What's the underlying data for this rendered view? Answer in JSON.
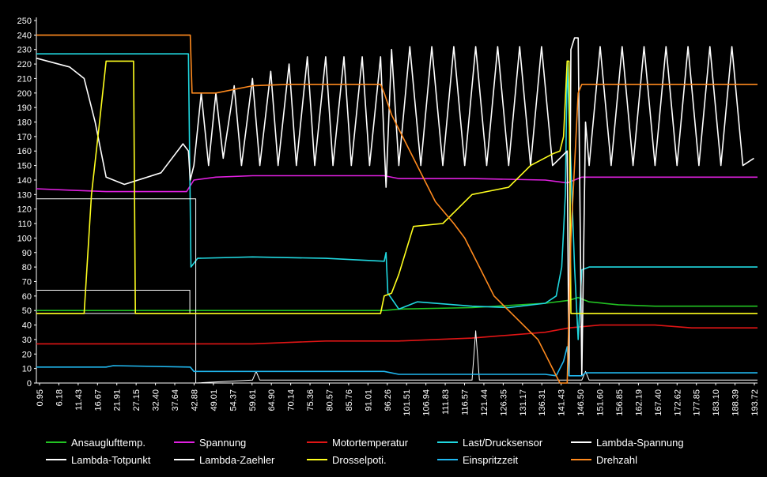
{
  "chart_data": {
    "type": "line",
    "title": "",
    "xlabel": "",
    "ylabel": "",
    "ylim": [
      0,
      250
    ],
    "xlim": [
      0.95,
      198.0
    ],
    "grid": false,
    "legend_position": "bottom",
    "y_ticks": [
      0,
      10,
      20,
      30,
      40,
      50,
      60,
      70,
      80,
      90,
      100,
      110,
      120,
      130,
      140,
      150,
      160,
      170,
      180,
      190,
      200,
      210,
      220,
      230,
      240,
      250
    ],
    "x_tick_labels": [
      "0.95",
      "6.18",
      "11.43",
      "16.67",
      "21.91",
      "27.15",
      "32.40",
      "37.64",
      "42.88",
      "49.01",
      "54.37",
      "59.61",
      "64.90",
      "70.14",
      "75.36",
      "80.57",
      "85.76",
      "91.01",
      "96.26",
      "101.51",
      "106.94",
      "111.83",
      "116.57",
      "121.44",
      "126.35",
      "131.17",
      "136.31",
      "141.43",
      "146.50",
      "151.60",
      "156.85",
      "162.19",
      "167.40",
      "172.62",
      "177.85",
      "183.10",
      "188.39",
      "193.72"
    ],
    "series": [
      {
        "name": "Ansauglufttemp.",
        "color": "#22c222",
        "points": [
          [
            0.95,
            50
          ],
          [
            20,
            50
          ],
          [
            42,
            50
          ],
          [
            60,
            50
          ],
          [
            80,
            50
          ],
          [
            96,
            50
          ],
          [
            100,
            51
          ],
          [
            120,
            52
          ],
          [
            140,
            55
          ],
          [
            146.5,
            57
          ],
          [
            149,
            59
          ],
          [
            152,
            56
          ],
          [
            160,
            54
          ],
          [
            170,
            53
          ],
          [
            190,
            53
          ],
          [
            198,
            53
          ]
        ]
      },
      {
        "name": "Spannung",
        "color": "#e020e0",
        "points": [
          [
            0.95,
            134
          ],
          [
            10,
            133
          ],
          [
            20,
            132
          ],
          [
            30,
            132
          ],
          [
            42,
            132
          ],
          [
            44,
            140
          ],
          [
            50,
            142
          ],
          [
            60,
            143
          ],
          [
            80,
            143
          ],
          [
            96,
            143
          ],
          [
            100,
            141
          ],
          [
            120,
            141
          ],
          [
            140,
            140
          ],
          [
            146,
            138
          ],
          [
            150,
            142
          ],
          [
            160,
            142
          ],
          [
            180,
            142
          ],
          [
            198,
            142
          ]
        ]
      },
      {
        "name": "Motortemperatur",
        "color": "#e01515",
        "points": [
          [
            0.95,
            27
          ],
          [
            43,
            27
          ],
          [
            60,
            27
          ],
          [
            70,
            28
          ],
          [
            80,
            29
          ],
          [
            90,
            29
          ],
          [
            100,
            29
          ],
          [
            110,
            30
          ],
          [
            120,
            31
          ],
          [
            130,
            33
          ],
          [
            140,
            35
          ],
          [
            146.5,
            38
          ],
          [
            155,
            40
          ],
          [
            170,
            40
          ],
          [
            180,
            38
          ],
          [
            198,
            38
          ]
        ]
      },
      {
        "name": "Last/Drucksensor",
        "color": "#20d8e0",
        "points": [
          [
            0.95,
            227
          ],
          [
            20,
            227
          ],
          [
            42.5,
            227
          ],
          [
            43.2,
            80
          ],
          [
            45,
            86
          ],
          [
            60,
            87
          ],
          [
            80,
            86
          ],
          [
            96,
            84
          ],
          [
            96.5,
            90
          ],
          [
            97,
            62
          ],
          [
            100,
            51
          ],
          [
            105,
            56
          ],
          [
            120,
            53
          ],
          [
            130,
            52
          ],
          [
            140,
            55
          ],
          [
            143,
            60
          ],
          [
            144.5,
            80
          ],
          [
            145.5,
            130
          ],
          [
            146,
            222
          ],
          [
            147,
            150
          ],
          [
            148,
            80
          ],
          [
            149,
            30
          ],
          [
            150,
            78
          ],
          [
            152,
            80
          ],
          [
            170,
            80
          ],
          [
            198,
            80
          ]
        ]
      },
      {
        "name": "Lambda-Spannung",
        "color": "#ffffff",
        "points": [
          [
            0.95,
            224
          ],
          [
            10,
            218
          ],
          [
            14,
            210
          ],
          [
            17,
            180
          ],
          [
            20,
            142
          ],
          [
            25,
            137
          ],
          [
            35,
            145
          ],
          [
            41,
            165
          ],
          [
            42.5,
            160
          ],
          [
            43,
            140
          ],
          [
            44,
            150
          ],
          [
            46,
            200
          ],
          [
            48,
            150
          ],
          [
            50,
            200
          ],
          [
            52,
            155
          ],
          [
            55,
            205
          ],
          [
            57,
            150
          ],
          [
            60,
            210
          ],
          [
            62,
            150
          ],
          [
            65,
            215
          ],
          [
            67,
            150
          ],
          [
            70,
            220
          ],
          [
            72,
            150
          ],
          [
            75,
            225
          ],
          [
            77,
            150
          ],
          [
            80,
            225
          ],
          [
            82,
            150
          ],
          [
            85,
            225
          ],
          [
            87,
            150
          ],
          [
            90,
            225
          ],
          [
            92,
            150
          ],
          [
            95,
            225
          ],
          [
            96.5,
            135
          ],
          [
            98,
            230
          ],
          [
            100,
            150
          ],
          [
            103,
            232
          ],
          [
            106,
            150
          ],
          [
            109,
            232
          ],
          [
            112,
            150
          ],
          [
            115,
            232
          ],
          [
            118,
            150
          ],
          [
            121,
            232
          ],
          [
            124,
            150
          ],
          [
            127,
            232
          ],
          [
            130,
            150
          ],
          [
            133,
            232
          ],
          [
            136,
            150
          ],
          [
            139,
            232
          ],
          [
            142,
            150
          ],
          [
            144,
            155
          ],
          [
            146,
            160
          ],
          [
            146.5,
            5
          ],
          [
            147,
            230
          ],
          [
            148,
            238
          ],
          [
            149,
            238
          ],
          [
            150,
            5
          ],
          [
            151,
            180
          ],
          [
            152,
            150
          ],
          [
            155,
            232
          ],
          [
            158,
            150
          ],
          [
            161,
            232
          ],
          [
            164,
            150
          ],
          [
            167,
            232
          ],
          [
            170,
            150
          ],
          [
            173,
            232
          ],
          [
            176,
            150
          ],
          [
            179,
            232
          ],
          [
            182,
            150
          ],
          [
            185,
            232
          ],
          [
            188,
            150
          ],
          [
            191,
            232
          ],
          [
            194,
            150
          ],
          [
            197,
            155
          ]
        ]
      },
      {
        "name": "Lambda-Totpunkt",
        "color": "#ffffff",
        "points": [
          [
            0.95,
            64
          ],
          [
            42.88,
            64
          ],
          [
            42.88,
            48
          ],
          [
            0.95,
            48
          ]
        ]
      },
      {
        "name": "Lambda-Zaehler",
        "color": "#ffffff",
        "points": [
          [
            0.95,
            127
          ],
          [
            44.5,
            127
          ],
          [
            44.5,
            0
          ],
          [
            60,
            2
          ],
          [
            61,
            8
          ],
          [
            62,
            2
          ],
          [
            120,
            2
          ],
          [
            121,
            36
          ],
          [
            122,
            2
          ],
          [
            150,
            2
          ],
          [
            151,
            8
          ],
          [
            152,
            2
          ],
          [
            198,
            2
          ]
        ]
      },
      {
        "name": "Drosselpoti.",
        "color": "#ffff1e",
        "points": [
          [
            0.95,
            48
          ],
          [
            14,
            48
          ],
          [
            16,
            130
          ],
          [
            18,
            175
          ],
          [
            20,
            222
          ],
          [
            27.5,
            222
          ],
          [
            28,
            48
          ],
          [
            42,
            48
          ],
          [
            60,
            48
          ],
          [
            80,
            48
          ],
          [
            95,
            48
          ],
          [
            96,
            60
          ],
          [
            98,
            62
          ],
          [
            100,
            75
          ],
          [
            104,
            108
          ],
          [
            112,
            110
          ],
          [
            116,
            120
          ],
          [
            120,
            130
          ],
          [
            124,
            132
          ],
          [
            130,
            135
          ],
          [
            136,
            150
          ],
          [
            142,
            158
          ],
          [
            144,
            160
          ],
          [
            145,
            170
          ],
          [
            146,
            222
          ],
          [
            146.5,
            222
          ],
          [
            147,
            48
          ],
          [
            160,
            48
          ],
          [
            180,
            48
          ],
          [
            198,
            48
          ]
        ]
      },
      {
        "name": "Einspritzzeit",
        "color": "#20b8f0",
        "points": [
          [
            0.95,
            11
          ],
          [
            20,
            11
          ],
          [
            22,
            12
          ],
          [
            43,
            11
          ],
          [
            44,
            8
          ],
          [
            60,
            8
          ],
          [
            80,
            8
          ],
          [
            96,
            8
          ],
          [
            100,
            6
          ],
          [
            120,
            6
          ],
          [
            140,
            6
          ],
          [
            143,
            5
          ],
          [
            145,
            15
          ],
          [
            146,
            25
          ],
          [
            146.5,
            5
          ],
          [
            147,
            5
          ],
          [
            150,
            5
          ],
          [
            151,
            7
          ],
          [
            160,
            7
          ],
          [
            180,
            7
          ],
          [
            198,
            7
          ]
        ]
      },
      {
        "name": "Drehzahl",
        "color": "#ff8a1e",
        "points": [
          [
            0.95,
            240
          ],
          [
            43,
            240
          ],
          [
            43.5,
            200
          ],
          [
            50,
            200
          ],
          [
            60,
            205
          ],
          [
            70,
            206
          ],
          [
            80,
            206
          ],
          [
            90,
            206
          ],
          [
            95,
            206
          ],
          [
            96,
            200
          ],
          [
            98,
            185
          ],
          [
            105,
            150
          ],
          [
            110,
            125
          ],
          [
            115,
            110
          ],
          [
            118,
            100
          ],
          [
            122,
            80
          ],
          [
            126,
            60
          ],
          [
            130,
            50
          ],
          [
            134,
            40
          ],
          [
            138,
            30
          ],
          [
            140,
            20
          ],
          [
            142,
            10
          ],
          [
            144,
            0
          ],
          [
            146,
            0
          ],
          [
            147,
            100
          ],
          [
            149,
            200
          ],
          [
            150,
            206
          ],
          [
            160,
            206
          ],
          [
            180,
            206
          ],
          [
            198,
            206
          ]
        ]
      }
    ]
  }
}
